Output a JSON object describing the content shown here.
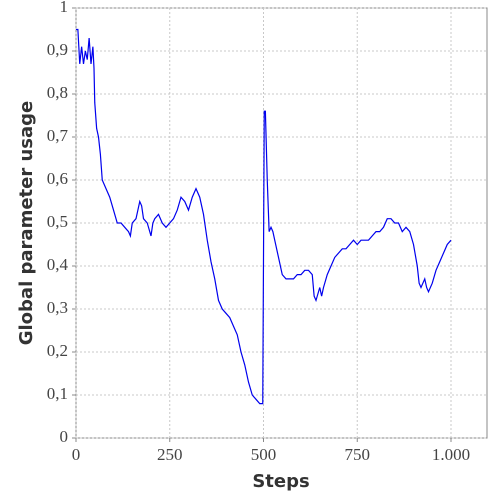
{
  "chart_data": {
    "type": "line",
    "xlabel": "Steps",
    "ylabel": "Global parameter usage",
    "x": [
      0,
      5,
      10,
      15,
      20,
      25,
      30,
      35,
      40,
      45,
      48,
      50,
      55,
      60,
      65,
      70,
      80,
      90,
      100,
      110,
      120,
      130,
      140,
      145,
      150,
      160,
      170,
      175,
      180,
      190,
      200,
      205,
      210,
      220,
      230,
      240,
      250,
      260,
      270,
      280,
      290,
      300,
      310,
      320,
      330,
      340,
      350,
      360,
      370,
      380,
      390,
      400,
      410,
      420,
      430,
      440,
      450,
      460,
      470,
      480,
      490,
      498,
      502,
      505,
      510,
      515,
      520,
      525,
      530,
      540,
      550,
      560,
      570,
      580,
      590,
      600,
      610,
      620,
      630,
      635,
      640,
      650,
      655,
      660,
      670,
      680,
      690,
      700,
      710,
      720,
      730,
      740,
      750,
      760,
      770,
      780,
      790,
      800,
      810,
      820,
      830,
      840,
      850,
      860,
      870,
      880,
      890,
      900,
      910,
      915,
      920,
      930,
      935,
      940,
      950,
      960,
      970,
      980,
      990,
      1000
    ],
    "series": [
      {
        "name": "usage",
        "color": "#0000ee",
        "values": [
          0.95,
          0.95,
          0.87,
          0.91,
          0.87,
          0.9,
          0.88,
          0.93,
          0.87,
          0.91,
          0.86,
          0.78,
          0.72,
          0.7,
          0.66,
          0.6,
          0.58,
          0.56,
          0.53,
          0.5,
          0.5,
          0.49,
          0.48,
          0.47,
          0.5,
          0.51,
          0.55,
          0.54,
          0.51,
          0.5,
          0.47,
          0.5,
          0.51,
          0.52,
          0.5,
          0.49,
          0.5,
          0.51,
          0.53,
          0.56,
          0.55,
          0.53,
          0.56,
          0.58,
          0.56,
          0.52,
          0.46,
          0.41,
          0.37,
          0.32,
          0.3,
          0.29,
          0.28,
          0.26,
          0.24,
          0.2,
          0.17,
          0.13,
          0.1,
          0.09,
          0.08,
          0.08,
          0.76,
          0.76,
          0.6,
          0.48,
          0.49,
          0.48,
          0.46,
          0.42,
          0.38,
          0.37,
          0.37,
          0.37,
          0.38,
          0.38,
          0.39,
          0.39,
          0.38,
          0.33,
          0.32,
          0.35,
          0.33,
          0.35,
          0.38,
          0.4,
          0.42,
          0.43,
          0.44,
          0.44,
          0.45,
          0.46,
          0.45,
          0.46,
          0.46,
          0.46,
          0.47,
          0.48,
          0.48,
          0.49,
          0.51,
          0.51,
          0.5,
          0.5,
          0.48,
          0.49,
          0.48,
          0.45,
          0.4,
          0.36,
          0.35,
          0.37,
          0.35,
          0.34,
          0.36,
          0.39,
          0.41,
          0.43,
          0.45,
          0.46
        ]
      }
    ],
    "xlim": [
      0,
      1096
    ],
    "ylim": [
      0,
      1
    ],
    "xticks": [
      0,
      250,
      500,
      750,
      {
        "value": 1000,
        "label": "1.000"
      }
    ],
    "yticks": [
      0,
      {
        "value": 0.1,
        "label": "0,1"
      },
      {
        "value": 0.2,
        "label": "0,2"
      },
      {
        "value": 0.3,
        "label": "0,3"
      },
      {
        "value": 0.4,
        "label": "0,4"
      },
      {
        "value": 0.5,
        "label": "0,5"
      },
      {
        "value": 0.6,
        "label": "0,6"
      },
      {
        "value": 0.7,
        "label": "0,7"
      },
      {
        "value": 0.8,
        "label": "0,8"
      },
      {
        "value": 0.9,
        "label": "0,9"
      },
      1
    ],
    "grid": true
  }
}
